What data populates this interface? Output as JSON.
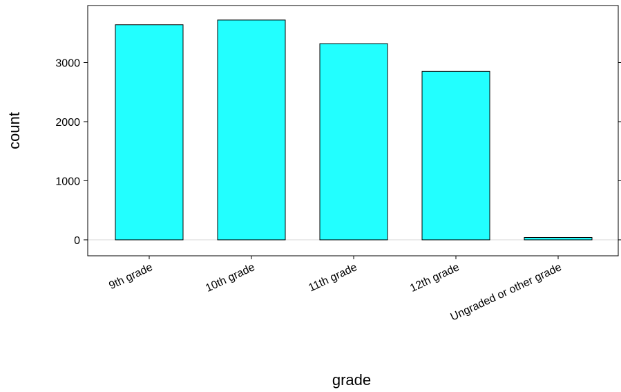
{
  "chart_data": {
    "type": "bar",
    "categories": [
      "9th grade",
      "10th grade",
      "11th grade",
      "12th grade",
      "Ungraded or other grade"
    ],
    "values": [
      3640,
      3720,
      3320,
      2850,
      40
    ],
    "xlabel": "grade",
    "ylabel": "count",
    "yticks": [
      0,
      1000,
      2000,
      3000
    ],
    "ylim": [
      -270,
      3965
    ],
    "grid": false,
    "bar_color": "#22ffff",
    "bar_stroke": "#000000",
    "baseline_color": "#e6e6e6"
  }
}
